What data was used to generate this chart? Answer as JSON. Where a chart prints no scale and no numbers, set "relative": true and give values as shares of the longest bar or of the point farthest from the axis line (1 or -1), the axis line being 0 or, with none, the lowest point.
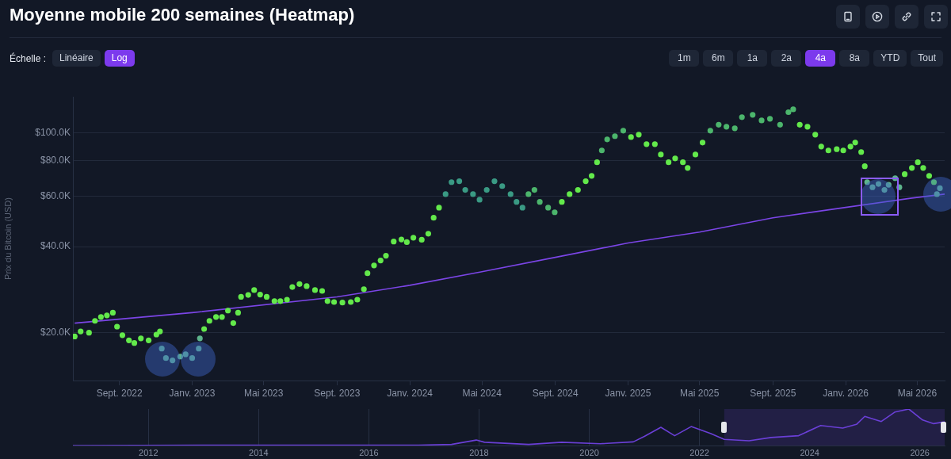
{
  "chart_data": [
    {
      "type": "scatter",
      "title": "Moyenne mobile 200 semaines (Heatmap)",
      "ylabel": "Prix du Bitcoin (USD)",
      "annotations": [
        "Échelle :",
        "Linéaire",
        "Log",
        "1m",
        "6m",
        "1a",
        "2a",
        "4a",
        "8a",
        "YTD",
        "Tout"
      ],
      "log": "y",
      "grid": "y",
      "xlim": [
        "2022-06-15",
        "2026-06-16"
      ],
      "xticks": [
        {
          "value": "2022-09-01",
          "label": "Sept. 2022"
        },
        {
          "value": "2023-01-01",
          "label": "Janv. 2023"
        },
        {
          "value": "2023-05-01",
          "label": "Mai 2023"
        },
        {
          "value": "2023-09-01",
          "label": "Sept. 2023"
        },
        {
          "value": "2024-01-01",
          "label": "Janv. 2024"
        },
        {
          "value": "2024-05-01",
          "label": "Mai 2024"
        },
        {
          "value": "2024-09-01",
          "label": "Sept. 2024"
        },
        {
          "value": "2025-01-01",
          "label": "Janv. 2025"
        },
        {
          "value": "2025-05-01",
          "label": "Mai 2025"
        },
        {
          "value": "2025-09-01",
          "label": "Sept. 2025"
        },
        {
          "value": "2026-01-01",
          "label": "Janv. 2026"
        },
        {
          "value": "2026-05-01",
          "label": "Mai 2026"
        }
      ],
      "ylim": [
        13600,
        134000
      ],
      "yticks": [
        {
          "value": 20000,
          "label": "$20.0K"
        },
        {
          "value": 40000,
          "label": "$40.0K"
        },
        {
          "value": 60000,
          "label": "$60.0K"
        },
        {
          "value": 80000,
          "label": "$80.0K"
        },
        {
          "value": 100000,
          "label": "$100.0K"
        }
      ],
      "series": [
        {
          "marker": "circle",
          "x": [
            "2022-06-18",
            "2022-06-28",
            "2022-07-12",
            "2022-07-22",
            "2022-08-01",
            "2022-08-11",
            "2022-08-21",
            "2022-08-28",
            "2022-09-06",
            "2022-09-17",
            "2022-09-26",
            "2022-10-07",
            "2022-10-20",
            "2022-11-02",
            "2022-11-08",
            "2022-11-11",
            "2022-11-18",
            "2022-11-29",
            "2022-12-12",
            "2022-12-21",
            "2023-01-01",
            "2023-01-12",
            "2023-01-14",
            "2023-01-21",
            "2023-01-30",
            "2023-02-10",
            "2023-02-20",
            "2023-03-02",
            "2023-03-11",
            "2023-03-19",
            "2023-03-24",
            "2023-04-05",
            "2023-04-15",
            "2023-04-25",
            "2023-05-06",
            "2023-05-19",
            "2023-05-29",
            "2023-06-09",
            "2023-06-18",
            "2023-06-30",
            "2023-07-12",
            "2023-07-26",
            "2023-08-07",
            "2023-08-16",
            "2023-08-27",
            "2023-09-10",
            "2023-09-24",
            "2023-10-05",
            "2023-10-16",
            "2023-10-22",
            "2023-11-02",
            "2023-11-13",
            "2023-11-22",
            "2023-12-05",
            "2023-12-18",
            "2023-12-27",
            "2024-01-07",
            "2024-01-21",
            "2024-02-01",
            "2024-02-10",
            "2024-02-19",
            "2024-03-01",
            "2024-03-11",
            "2024-03-24",
            "2024-04-03",
            "2024-04-16",
            "2024-04-27",
            "2024-05-09",
            "2024-05-22",
            "2024-06-04",
            "2024-06-18",
            "2024-06-28",
            "2024-07-08",
            "2024-07-18",
            "2024-07-28",
            "2024-08-06",
            "2024-08-20",
            "2024-08-31",
            "2024-09-12",
            "2024-09-25",
            "2024-10-09",
            "2024-10-22",
            "2024-11-01",
            "2024-11-10",
            "2024-11-18",
            "2024-11-27",
            "2024-12-10",
            "2024-12-24",
            "2025-01-06",
            "2025-01-19",
            "2025-02-01",
            "2025-02-15",
            "2025-02-25",
            "2025-03-10",
            "2025-03-21",
            "2025-04-03",
            "2025-04-11",
            "2025-04-24",
            "2025-05-06",
            "2025-05-19",
            "2025-06-02",
            "2025-06-15",
            "2025-06-29",
            "2025-07-11",
            "2025-07-29",
            "2025-08-13",
            "2025-08-27",
            "2025-09-13",
            "2025-09-27",
            "2025-10-05",
            "2025-10-16",
            "2025-10-29",
            "2025-11-11",
            "2025-11-21",
            "2025-12-03",
            "2025-12-17",
            "2025-12-28",
            "2026-01-09",
            "2026-01-17",
            "2026-01-27",
            "2026-02-02",
            "2026-02-06",
            "2026-02-15",
            "2026-02-25",
            "2026-03-07",
            "2026-03-14",
            "2026-03-25",
            "2026-04-01",
            "2026-04-10",
            "2026-04-22",
            "2026-05-02",
            "2026-05-11",
            "2026-05-21",
            "2026-05-29",
            "2026-06-03",
            "2026-06-08"
          ],
          "values": [
            19400,
            20200,
            20000,
            22000,
            22700,
            23000,
            23500,
            21000,
            19600,
            18800,
            18400,
            19100,
            18800,
            19700,
            20200,
            17600,
            16300,
            16000,
            16500,
            16800,
            16300,
            17600,
            19100,
            20600,
            22000,
            22700,
            22700,
            23900,
            21600,
            23500,
            26700,
            27100,
            28200,
            27200,
            26700,
            25800,
            25800,
            26100,
            28900,
            29600,
            29100,
            28200,
            28000,
            25800,
            25600,
            25500,
            25600,
            26100,
            28400,
            32300,
            34400,
            35800,
            37200,
            41700,
            42400,
            41500,
            43000,
            42300,
            44400,
            50500,
            54800,
            61100,
            67300,
            67800,
            63200,
            61100,
            58400,
            63200,
            67800,
            65200,
            61100,
            57400,
            54800,
            61100,
            63200,
            57400,
            54800,
            52800,
            57400,
            61100,
            63200,
            67800,
            70800,
            79000,
            86900,
            95000,
            97500,
            101900,
            96800,
            98700,
            91400,
            91400,
            84100,
            79000,
            81500,
            79000,
            75500,
            84100,
            92600,
            101900,
            106900,
            105200,
            103900,
            113600,
            115800,
            110700,
            112200,
            106900,
            118300,
            121000,
            106900,
            105200,
            98700,
            89700,
            86900,
            87800,
            86900,
            89700,
            92600,
            85800,
            76500,
            67300,
            64600,
            66300,
            63200,
            65900,
            69500,
            64600,
            71800,
            75500,
            79000,
            75500,
            70800,
            67300,
            61100,
            64100
          ],
          "colors": [
            "#63e94b",
            "#63e94b",
            "#63e94b",
            "#63e94b",
            "#63e94b",
            "#63e94b",
            "#63e94b",
            "#63e94b",
            "#63e94b",
            "#63e94b",
            "#63e94b",
            "#63e94b",
            "#63e94b",
            "#63e94b",
            "#63e94b",
            "#5db48c",
            "#5db48c",
            "#5db48c",
            "#5db48c",
            "#5db48c",
            "#5db48c",
            "#5db48c",
            "#5db48c",
            "#63e94b",
            "#63e94b",
            "#63e94b",
            "#63e94b",
            "#63e94b",
            "#63e94b",
            "#63e94b",
            "#63e94b",
            "#63e94b",
            "#63e94b",
            "#63e94b",
            "#63e94b",
            "#63e94b",
            "#63e94b",
            "#63e94b",
            "#63e94b",
            "#63e94b",
            "#63e94b",
            "#63e94b",
            "#63e94b",
            "#63e94b",
            "#63e94b",
            "#63e94b",
            "#63e94b",
            "#63e94b",
            "#63e94b",
            "#63e94b",
            "#63e94b",
            "#63e94b",
            "#63e94b",
            "#63e94b",
            "#63e94b",
            "#63e94b",
            "#63e94b",
            "#63e94b",
            "#63e94b",
            "#63e94b",
            "#63e94b",
            "#3a9a84",
            "#3a9a84",
            "#3a9a84",
            "#3a9a84",
            "#3a9a84",
            "#3a9a84",
            "#3a9a84",
            "#3a9a84",
            "#3a9a84",
            "#3a9a84",
            "#3a9a84",
            "#3a9a84",
            "#4cb56c",
            "#4cb56c",
            "#4cb56c",
            "#4cb56c",
            "#4cb56c",
            "#63e94b",
            "#63e94b",
            "#63e94b",
            "#63e94b",
            "#63e94b",
            "#63e94b",
            "#4cb56c",
            "#4cb56c",
            "#4cb56c",
            "#4cb56c",
            "#63e94b",
            "#63e94b",
            "#63e94b",
            "#63e94b",
            "#63e94b",
            "#63e94b",
            "#63e94b",
            "#63e94b",
            "#63e94b",
            "#63e94b",
            "#63e94b",
            "#4cb56c",
            "#4cb56c",
            "#4cb56c",
            "#4cb56c",
            "#4cb56c",
            "#4cb56c",
            "#4cb56c",
            "#4cb56c",
            "#4cb56c",
            "#4cb56c",
            "#4cb56c",
            "#63e94b",
            "#63e94b",
            "#63e94b",
            "#63e94b",
            "#63e94b",
            "#63e94b",
            "#63e94b",
            "#63e94b",
            "#63e94b",
            "#63e94b",
            "#63e94b",
            "#5db48c",
            "#5db48c",
            "#5db48c",
            "#5db48c",
            "#5db48c",
            "#5db48c",
            "#5db48c",
            "#63e94b",
            "#63e94b",
            "#63e94b",
            "#63e94b",
            "#63e94b",
            "#63e94b",
            "#5db48c",
            "#5db48c"
          ]
        },
        {
          "type": "line",
          "marker": "none",
          "color": "#7b45e6",
          "x": [
            "2022-06-18",
            "2023-01-01",
            "2023-09-01",
            "2024-01-01",
            "2024-05-01",
            "2024-09-01",
            "2025-01-01",
            "2025-05-01",
            "2025-09-01",
            "2026-01-01",
            "2026-04-22",
            "2026-06-16"
          ],
          "values": [
            21600,
            23500,
            26700,
            29300,
            32700,
            36700,
            41200,
            45000,
            50500,
            54900,
            59200,
            61100
          ]
        }
      ]
    },
    {
      "type": "line",
      "relative": true,
      "grid": "x",
      "tick_labels": "x",
      "xlim": [
        2010.63,
        2026.45
      ],
      "xticks": [
        2012,
        2014,
        2016,
        2018,
        2020,
        2022,
        2024,
        2026
      ],
      "bands": [
        {
          "axis": "x",
          "from": 2022.45,
          "to": 2026.45,
          "color": "#221f45"
        }
      ],
      "series": [
        {
          "color": "#6a3fd6",
          "x": [
            2010.63,
            2013.9,
            2016.9,
            2017.5,
            2017.95,
            2018.1,
            2018.9,
            2019.5,
            2020.2,
            2020.8,
            2021.0,
            2021.3,
            2021.55,
            2021.85,
            2022.2,
            2022.45,
            2022.9,
            2023.3,
            2023.8,
            2024.2,
            2024.6,
            2024.85,
            2025.0,
            2025.3,
            2025.55,
            2025.8,
            2026.05,
            2026.25,
            2026.45
          ],
          "values": [
            0,
            0.01,
            0.01,
            0.03,
            0.15,
            0.09,
            0.03,
            0.09,
            0.05,
            0.1,
            0.25,
            0.5,
            0.27,
            0.52,
            0.33,
            0.17,
            0.13,
            0.22,
            0.27,
            0.55,
            0.48,
            0.58,
            0.8,
            0.66,
            0.92,
            1,
            0.7,
            0.6,
            0.65
          ]
        }
      ]
    }
  ]
}
